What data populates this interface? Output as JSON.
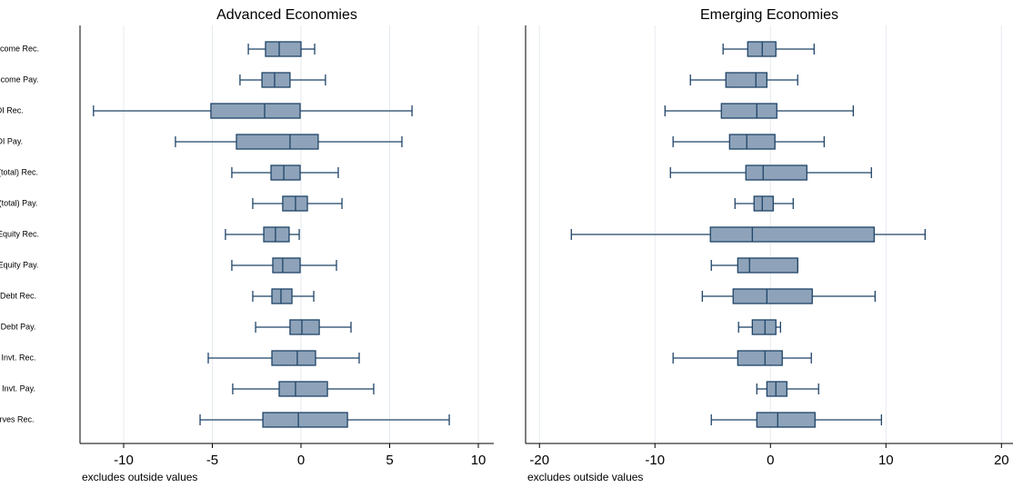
{
  "chart_data": [
    {
      "type": "box",
      "title": "Advanced Economies",
      "note": "excludes outside values",
      "categories": [
        "Invt. Income Rec.",
        "Invt. Income Pay.",
        "FDI Rec.",
        "FDI Pay.",
        "Portf. (total) Rec.",
        "Portf. (total) Pay.",
        "Portf. Equity Rec.",
        "Portf. Equity Pay.",
        "Portf. Debt Rec.",
        "Portf. Debt Pay.",
        "Other Invt. Rec.",
        "Other Invt. Pay.",
        "Reserves Rec."
      ],
      "whisker_low": [
        -2.97,
        -3.44,
        -11.7,
        -7.08,
        -3.9,
        -2.72,
        -4.26,
        -3.9,
        -2.72,
        -2.56,
        -5.23,
        -3.85,
        -5.69
      ],
      "q1": [
        -2.0,
        -2.2,
        -5.08,
        -3.64,
        -1.69,
        -1.03,
        -2.1,
        -1.59,
        -1.64,
        -0.62,
        -1.64,
        -1.23,
        -2.15
      ],
      "median": [
        -1.23,
        -1.49,
        -2.05,
        -0.62,
        -0.97,
        -0.31,
        -1.44,
        -1.03,
        -1.13,
        0.05,
        -0.21,
        -0.31,
        -0.15
      ],
      "q3": [
        0,
        -0.62,
        -0.05,
        0.97,
        -0.05,
        0.36,
        -0.67,
        -0.05,
        -0.51,
        1.03,
        0.82,
        1.49,
        2.62
      ],
      "whisker_high": [
        0.77,
        1.38,
        6.26,
        5.69,
        2.1,
        2.31,
        -0.1,
        2.0,
        0.72,
        2.82,
        3.28,
        4.1,
        8.36
      ],
      "xlim": [
        -12.46,
        10.87
      ],
      "xticks": [
        -10,
        -5,
        0,
        5,
        10
      ],
      "grid": true,
      "color": "#8ea3b9",
      "edgecolor": "#1f4468"
    },
    {
      "type": "box",
      "title": "Emerging Economies",
      "note": "excludes outside values",
      "whisker_low": [
        -4.1,
        -6.93,
        -9.13,
        -8.43,
        -8.66,
        -3.07,
        -17.24,
        -5.12,
        -5.9,
        -2.76,
        -8.43,
        -1.18,
        -5.12
      ],
      "q1": [
        -1.97,
        -3.86,
        -4.25,
        -3.54,
        -2.13,
        -1.42,
        -5.2,
        -2.83,
        -3.23,
        -1.57,
        -2.83,
        -0.31,
        -1.18
      ],
      "median": [
        -0.71,
        -1.26,
        -1.18,
        -2.05,
        -0.63,
        -0.71,
        -1.57,
        -1.81,
        -0.31,
        -0.47,
        -0.47,
        0.47,
        0.63
      ],
      "q3": [
        0.47,
        -0.31,
        0.55,
        0.39,
        3.15,
        0.24,
        8.98,
        2.36,
        3.62,
        0.47,
        1.02,
        1.42,
        3.86
      ],
      "whisker_high": [
        3.78,
        2.36,
        7.17,
        4.65,
        8.74,
        1.97,
        13.39,
        2.36,
        9.06,
        0.87,
        3.54,
        4.17,
        9.61
      ],
      "xlim": [
        -21.2,
        21.0
      ],
      "xticks": [
        -20,
        -10,
        0,
        10,
        20
      ],
      "grid": true,
      "color": "#8ea3b9",
      "edgecolor": "#1f4468"
    }
  ]
}
